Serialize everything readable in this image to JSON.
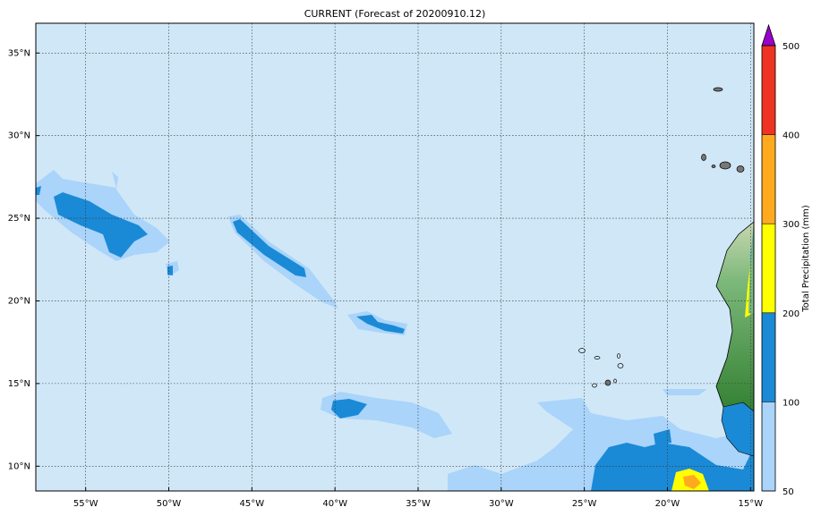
{
  "map": {
    "title": "CURRENT (Forecast of 20200910.12)",
    "xlim": [
      -58,
      -14.8
    ],
    "ylim": [
      8.5,
      36.8
    ],
    "xticks": [
      {
        "value": -55,
        "label": "55°W"
      },
      {
        "value": -50,
        "label": "50°W"
      },
      {
        "value": -45,
        "label": "45°W"
      },
      {
        "value": -40,
        "label": "40°W"
      },
      {
        "value": -35,
        "label": "35°W"
      },
      {
        "value": -30,
        "label": "30°W"
      },
      {
        "value": -25,
        "label": "25°W"
      },
      {
        "value": -20,
        "label": "20°W"
      },
      {
        "value": -15,
        "label": "15°W"
      }
    ],
    "yticks": [
      {
        "value": 10,
        "label": "10°N"
      },
      {
        "value": 15,
        "label": "15°N"
      },
      {
        "value": 20,
        "label": "20°N"
      },
      {
        "value": 25,
        "label": "25°N"
      },
      {
        "value": 30,
        "label": "30°N"
      },
      {
        "value": 35,
        "label": "35°N"
      }
    ],
    "grid": true,
    "colorbar": {
      "label": "Total Precipitation (mm)",
      "levels": [
        50,
        100,
        200,
        300,
        400,
        500
      ],
      "colors": [
        "#aad4fa",
        "#1a8ad6",
        "#ffff00",
        "#ffaa1e",
        "#ee3322"
      ],
      "extend_color": "#9900cc"
    }
  }
}
